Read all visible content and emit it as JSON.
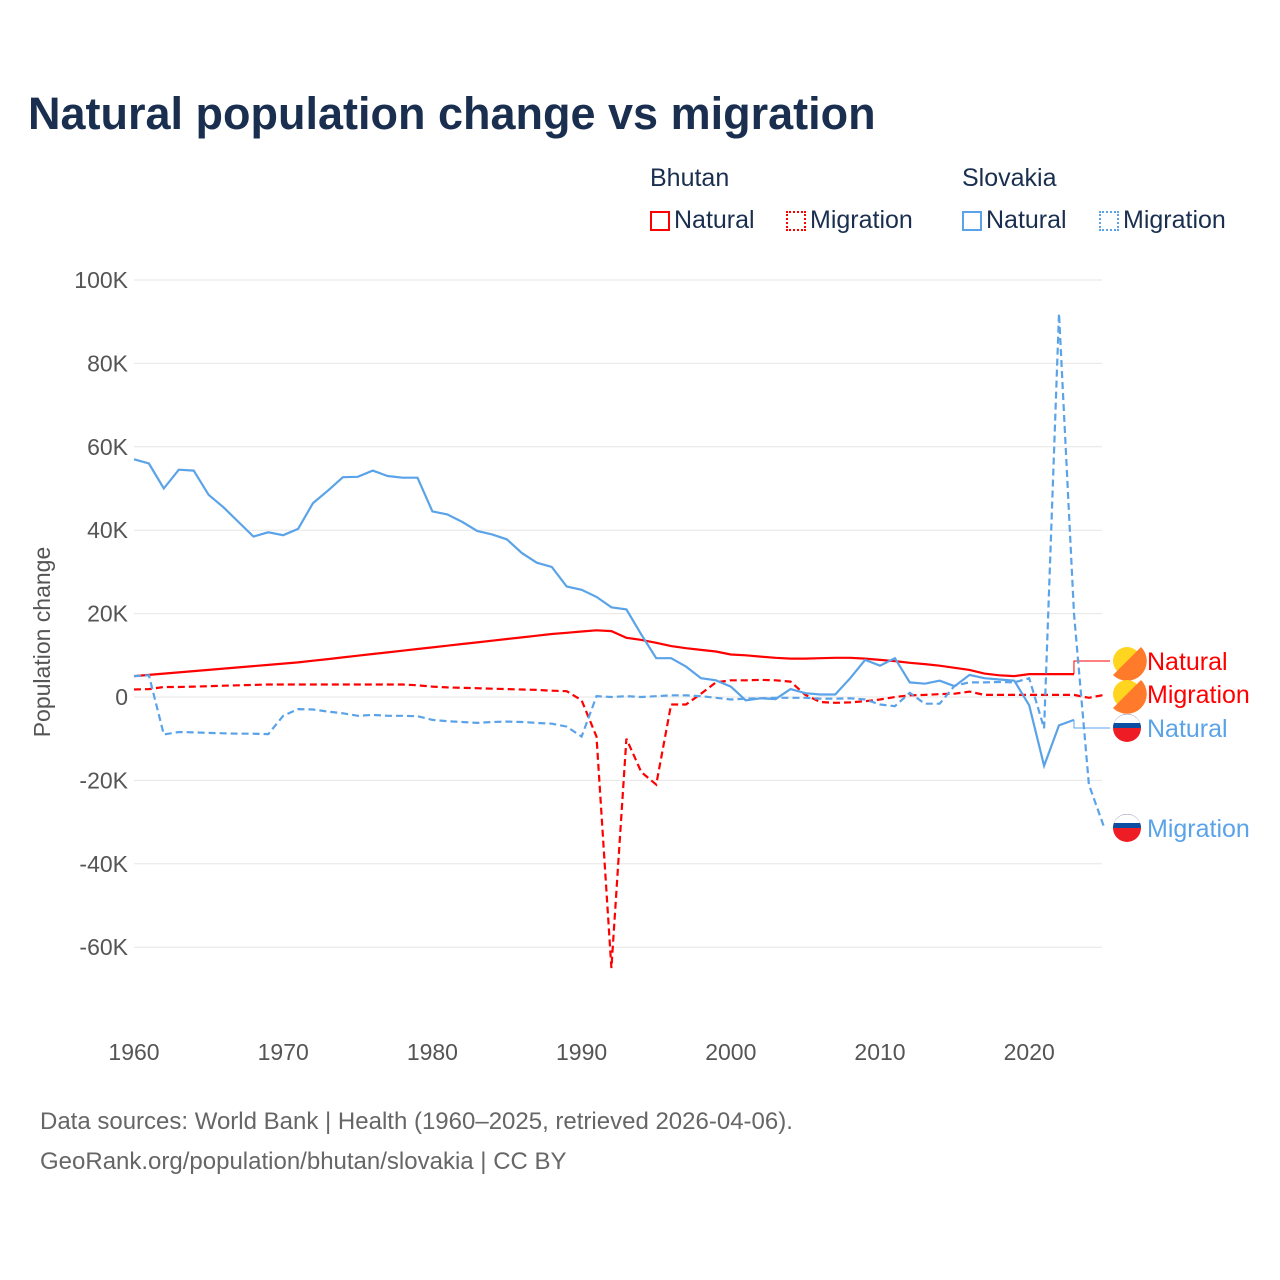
{
  "chart_data": {
    "type": "line",
    "title": "Natural population change vs migration",
    "xlabel": "",
    "ylabel": "Population change",
    "xlim": [
      1960,
      2025
    ],
    "ylim": [
      -70000,
      100000
    ],
    "yticks": [
      {
        "v": 100000,
        "l": "100K"
      },
      {
        "v": 80000,
        "l": "80K"
      },
      {
        "v": 60000,
        "l": "60K"
      },
      {
        "v": 40000,
        "l": "40K"
      },
      {
        "v": 20000,
        "l": "20K"
      },
      {
        "v": 0,
        "l": "0"
      },
      {
        "v": -20000,
        "l": "-20K"
      },
      {
        "v": -40000,
        "l": "-40K"
      },
      {
        "v": -60000,
        "l": "-60K"
      }
    ],
    "xticks": [
      1960,
      1970,
      1980,
      1990,
      2000,
      2010,
      2020
    ],
    "legend": {
      "groups": [
        {
          "name": "Bhutan",
          "items": [
            "Natural",
            "Migration"
          ]
        },
        {
          "name": "Slovakia",
          "items": [
            "Natural",
            "Migration"
          ]
        }
      ],
      "placement": "top-right"
    },
    "series": [
      {
        "name": "Bhutan Natural",
        "country": "Bhutan",
        "kind": "Natural",
        "color": "#ff0000",
        "dashed": false,
        "start": 1960,
        "values": [
          5000,
          5300,
          5600,
          5900,
          6200,
          6500,
          6800,
          7100,
          7400,
          7700,
          8000,
          8300,
          8700,
          9100,
          9500,
          9900,
          10300,
          10700,
          11100,
          11500,
          11900,
          12300,
          12700,
          13100,
          13500,
          13900,
          14300,
          14700,
          15100,
          15400,
          15700,
          16000,
          15800,
          14200,
          13700,
          13000,
          12200,
          11700,
          11300,
          10900,
          10200,
          10000,
          9700,
          9400,
          9200,
          9200,
          9300,
          9400,
          9400,
          9200,
          8900,
          8600,
          8200,
          7900,
          7500,
          7000,
          6500,
          5600,
          5200,
          5000,
          5500,
          5500,
          5500,
          5500
        ]
      },
      {
        "name": "Bhutan Migration",
        "country": "Bhutan",
        "kind": "Migration",
        "color": "#ff0000",
        "dashed": true,
        "start": 1960,
        "values": [
          1800,
          1900,
          2400,
          2400,
          2500,
          2600,
          2700,
          2800,
          2900,
          3000,
          3000,
          3000,
          3000,
          3000,
          3000,
          3000,
          3000,
          3000,
          3000,
          2800,
          2500,
          2300,
          2200,
          2100,
          2000,
          1900,
          1800,
          1700,
          1500,
          1400,
          -800,
          -9500,
          -65000,
          -10000,
          -18000,
          -21000,
          -1800,
          -1800,
          800,
          3500,
          4000,
          4000,
          4100,
          4000,
          3700,
          500,
          -1200,
          -1400,
          -1300,
          -1000,
          -600,
          0,
          400,
          500,
          700,
          800,
          1300,
          500,
          500,
          500,
          500,
          500,
          500,
          500,
          -200,
          500
        ]
      },
      {
        "name": "Slovakia Natural",
        "country": "Slovakia",
        "kind": "Natural",
        "color": "#5ba3e8",
        "dashed": false,
        "start": 1960,
        "values": [
          57000,
          56000,
          50000,
          54500,
          54300,
          48500,
          45500,
          42000,
          38500,
          39500,
          38800,
          40300,
          46500,
          49500,
          52700,
          52800,
          54300,
          53000,
          52600,
          52600,
          44500,
          43800,
          42000,
          39800,
          39000,
          37800,
          34500,
          32200,
          31200,
          26500,
          25700,
          24000,
          21500,
          21000,
          15000,
          9300,
          9300,
          7300,
          4500,
          4000,
          2500,
          -800,
          -300,
          -500,
          1900,
          900,
          600,
          600,
          4500,
          8900,
          7500,
          9300,
          3500,
          3200,
          3900,
          2600,
          5300,
          4500,
          4200,
          3900,
          -2000,
          -16500,
          -6800,
          -5500
        ]
      },
      {
        "name": "Slovakia Migration",
        "country": "Slovakia",
        "kind": "Migration",
        "color": "#5ba3e8",
        "dashed": true,
        "start": 1960,
        "values": [
          5000,
          5200,
          -9000,
          -8400,
          -8500,
          -8600,
          -8700,
          -8800,
          -8800,
          -8900,
          -4500,
          -2900,
          -3000,
          -3500,
          -3900,
          -4500,
          -4300,
          -4500,
          -4500,
          -4600,
          -5500,
          -5800,
          -6000,
          -6200,
          -6000,
          -5900,
          -6000,
          -6200,
          -6400,
          -7100,
          -9500,
          200,
          0,
          200,
          0,
          200,
          400,
          400,
          200,
          -200,
          -600,
          -400,
          -300,
          -200,
          -200,
          -200,
          -400,
          -400,
          -300,
          -600,
          -1800,
          -2200,
          1000,
          -1600,
          -1600,
          2700,
          3500,
          3500,
          3600,
          3500,
          4500,
          -7500,
          92000,
          20000,
          -21000,
          -31000
        ]
      }
    ]
  },
  "footer": {
    "line1": "Data sources: World Bank | Health (1960–2025, retrieved 2026-04-06).",
    "line2": "GeoRank.org/population/bhutan/slovakia | CC BY"
  }
}
